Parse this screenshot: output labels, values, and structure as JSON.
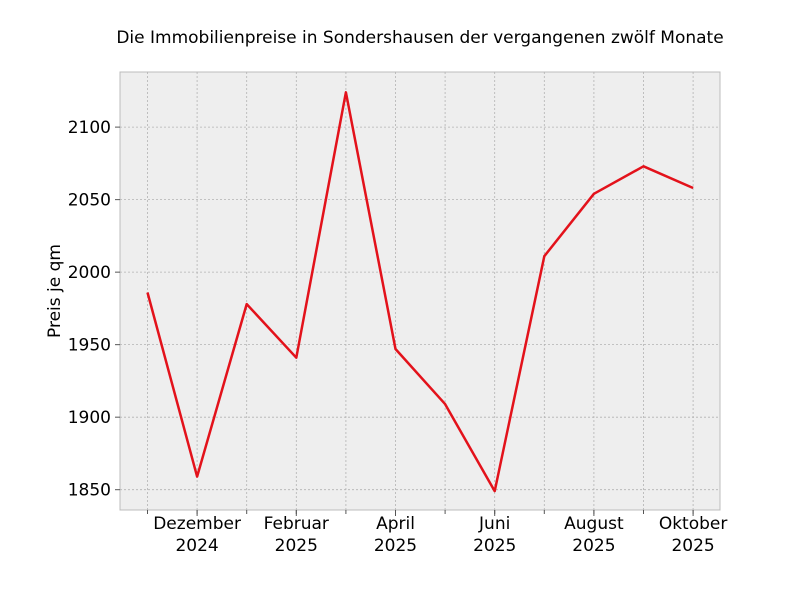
{
  "chart_data": {
    "type": "line",
    "title": "Die Immobilienpreise in Sondershausen der vergangenen zwölf Monate",
    "xlabel": "",
    "ylabel": "Preis je qm",
    "x": [
      "2024-11",
      "2024-12",
      "2025-01",
      "2025-02",
      "2025-03",
      "2025-04",
      "2025-05",
      "2025-06",
      "2025-07",
      "2025-08",
      "2025-09",
      "2025-10"
    ],
    "series": [
      {
        "values": [
          1986,
          1859,
          1978,
          1941,
          2124,
          1947,
          1909,
          1849,
          2011,
          2054,
          2073,
          2058
        ]
      }
    ],
    "x_tick_labels": [
      {
        "x": "2024-12",
        "lines": [
          "Dezember",
          "2024"
        ]
      },
      {
        "x": "2025-02",
        "lines": [
          "Februar",
          "2025"
        ]
      },
      {
        "x": "2025-04",
        "lines": [
          "April",
          "2025"
        ]
      },
      {
        "x": "2025-06",
        "lines": [
          "Juni",
          "2025"
        ]
      },
      {
        "x": "2025-08",
        "lines": [
          "August",
          "2025"
        ]
      },
      {
        "x": "2025-10",
        "lines": [
          "Oktober",
          "2025"
        ]
      }
    ],
    "y_ticks": [
      1850,
      1900,
      1950,
      2000,
      2050,
      2100
    ],
    "ylim": [
      1836,
      2138
    ],
    "grid": true,
    "line_color": "#e3121b",
    "plot_background": "#eeeeee"
  }
}
